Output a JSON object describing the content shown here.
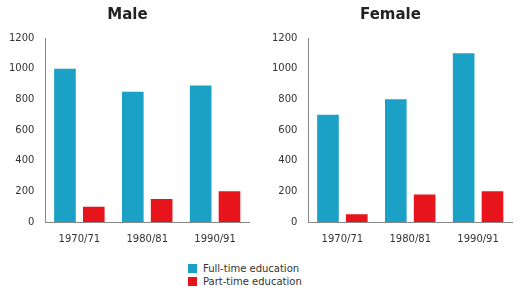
{
  "chart_data": [
    {
      "type": "bar",
      "title": "Male",
      "categories": [
        "1970/71",
        "1980/81",
        "1990/91"
      ],
      "series": [
        {
          "name": "Full-time education",
          "color": "#1ba1c5",
          "values": [
            1000,
            850,
            890
          ]
        },
        {
          "name": "Part-time education",
          "color": "#e8141b",
          "values": [
            100,
            150,
            200
          ]
        }
      ],
      "ylim": [
        0,
        1200
      ],
      "yticks": [
        0,
        200,
        400,
        600,
        800,
        1000,
        1200
      ],
      "grid": false,
      "legend": "bottom"
    },
    {
      "type": "bar",
      "title": "Female",
      "categories": [
        "1970/71",
        "1980/81",
        "1990/91"
      ],
      "series": [
        {
          "name": "Full-time education",
          "color": "#1ba1c5",
          "values": [
            700,
            800,
            1100
          ]
        },
        {
          "name": "Part-time education",
          "color": "#e8141b",
          "values": [
            50,
            180,
            200
          ]
        }
      ],
      "ylim": [
        0,
        1200
      ],
      "yticks": [
        0,
        200,
        400,
        600,
        800,
        1000,
        1200
      ],
      "grid": false,
      "legend": "bottom"
    }
  ]
}
